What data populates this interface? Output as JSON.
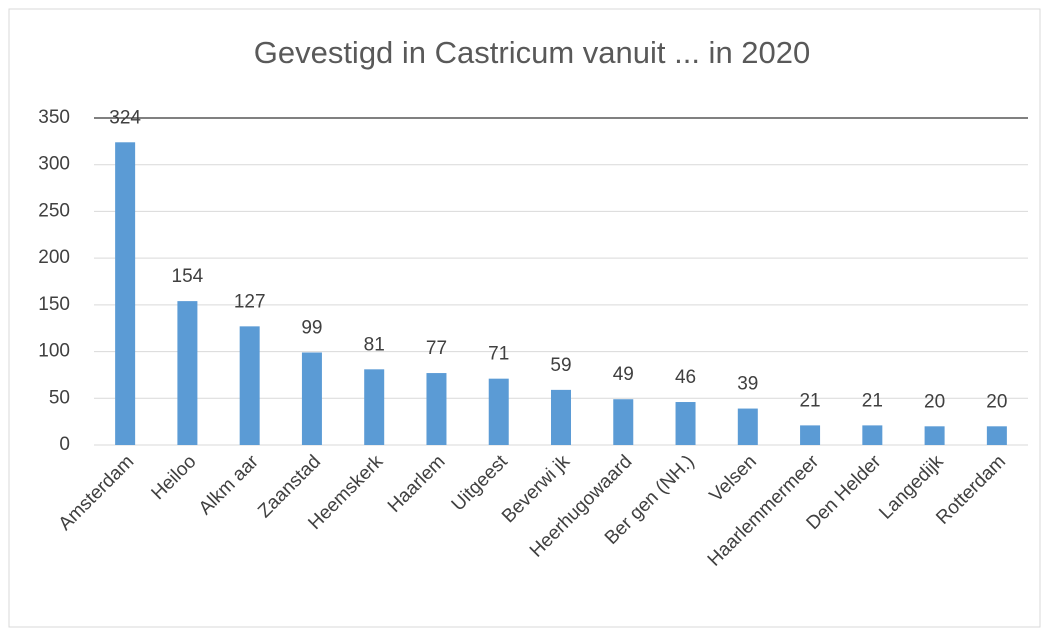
{
  "chart_data": {
    "type": "bar",
    "title": "Gevestigd in Castricum vanuit ... in 2020",
    "categories": [
      "Amsterdam",
      "Heiloo",
      "Alkm aar",
      "Zaanstad",
      "Heemskerk",
      "Haarlem",
      "Uitgeest",
      "Beverwi jk",
      "Heerhugowaard",
      "Ber gen (NH.)",
      "Velsen",
      "Haarlemmermeer",
      "Den Helder",
      "Langedijk",
      "Rotterdam"
    ],
    "values": [
      324,
      154,
      127,
      99,
      81,
      77,
      71,
      59,
      49,
      46,
      39,
      21,
      21,
      20,
      20
    ],
    "color": "#5b9bd5",
    "ylim": [
      0,
      350
    ],
    "yticks": [
      0,
      50,
      100,
      150,
      200,
      250,
      300,
      350
    ],
    "grid": true
  }
}
